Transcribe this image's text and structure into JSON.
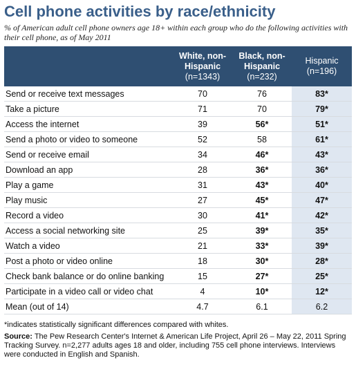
{
  "title": "Cell phone activities by race/ethnicity",
  "subtitle": "% of American adult cell phone owners age 18+ within each group who do the following activities with their cell phone, as of May 2011",
  "chart_data": {
    "type": "table",
    "columns": [
      {
        "name": "White, non-Hispanic",
        "n": "(n=1343)"
      },
      {
        "name": "Black, non-Hispanic",
        "n": "(n=232)"
      },
      {
        "name": "Hispanic",
        "n": "(n=196)"
      }
    ],
    "rows": [
      {
        "label": "Send or receive text messages",
        "values": [
          "70",
          "76",
          "83*"
        ]
      },
      {
        "label": "Take a picture",
        "values": [
          "71",
          "70",
          "79*"
        ]
      },
      {
        "label": "Access the internet",
        "values": [
          "39",
          "56*",
          "51*"
        ]
      },
      {
        "label": "Send a photo or video to someone",
        "values": [
          "52",
          "58",
          "61*"
        ]
      },
      {
        "label": "Send or receive email",
        "values": [
          "34",
          "46*",
          "43*"
        ]
      },
      {
        "label": "Download an app",
        "values": [
          "28",
          "36*",
          "36*"
        ]
      },
      {
        "label": "Play a game",
        "values": [
          "31",
          "43*",
          "40*"
        ]
      },
      {
        "label": "Play music",
        "values": [
          "27",
          "45*",
          "47*"
        ]
      },
      {
        "label": "Record a video",
        "values": [
          "30",
          "41*",
          "42*"
        ]
      },
      {
        "label": "Access a social networking site",
        "values": [
          "25",
          "39*",
          "35*"
        ]
      },
      {
        "label": "Watch a video",
        "values": [
          "21",
          "33*",
          "39*"
        ]
      },
      {
        "label": "Post a photo or video online",
        "values": [
          "18",
          "30*",
          "28*"
        ]
      },
      {
        "label": "Check bank balance or do online banking",
        "values": [
          "15",
          "27*",
          "25*"
        ]
      },
      {
        "label": "Participate in a video call or video chat",
        "values": [
          "4",
          "10*",
          "12*"
        ]
      }
    ],
    "mean_row": {
      "label": "Mean (out of 14)",
      "values": [
        "4.7",
        "6.1",
        "6.2"
      ]
    }
  },
  "footnote": "*indicates statistically significant differences compared with whites.",
  "source": {
    "label": "Source:",
    "text": "The Pew Research Center's Internet & American Life Project, April 26 – May 22, 2011 Spring Tracking Survey. n=2,277 adults ages 18 and older, including 755 cell phone interviews. Interviews were conducted in English and Spanish."
  },
  "colors": {
    "title": "#3a5f8a",
    "header_bg": "#2f4f72",
    "header_text": "#ffffff",
    "hispanic_col_bg": "#dfe7f1",
    "row_rule": "#d7dbe0"
  }
}
